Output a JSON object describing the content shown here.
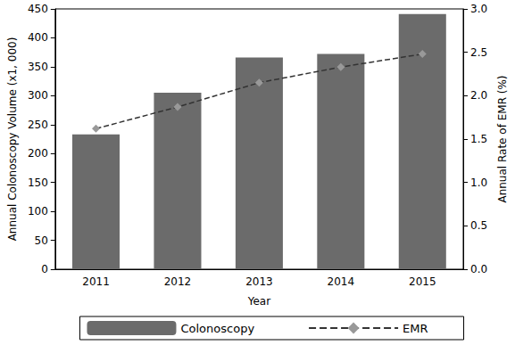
{
  "chart_data": {
    "type": "bar",
    "x_label": "Year",
    "y_label": "Annual Colonoscopy Volume (x1, 000)",
    "y2_label": "Annual Rate of EMR (%)",
    "categories": [
      "2011",
      "2012",
      "2013",
      "2014",
      "2015"
    ],
    "series": [
      {
        "name": "Colonoscopy",
        "type": "bar",
        "color": "#6b6b6b",
        "values": [
          233,
          305,
          366,
          372,
          441
        ]
      },
      {
        "name": "EMR",
        "type": "line",
        "axis": "y2",
        "color": "#999999",
        "marker": "diamond",
        "line_style": "dashed",
        "values": [
          1.62,
          1.87,
          2.15,
          2.33,
          2.48
        ]
      }
    ],
    "ylim": [
      0,
      450
    ],
    "yticks": [
      0,
      50,
      100,
      150,
      200,
      250,
      300,
      350,
      400,
      450
    ],
    "y2lim": [
      0,
      3
    ],
    "y2ticks": [
      {
        "value": 0,
        "label": "0.0"
      },
      0.5,
      {
        "value": 1,
        "label": "1.0"
      },
      1.5,
      {
        "value": 2,
        "label": "2.0"
      },
      2.5,
      {
        "value": 3,
        "label": "3.0"
      }
    ],
    "grid": false,
    "legend": "bottom"
  }
}
